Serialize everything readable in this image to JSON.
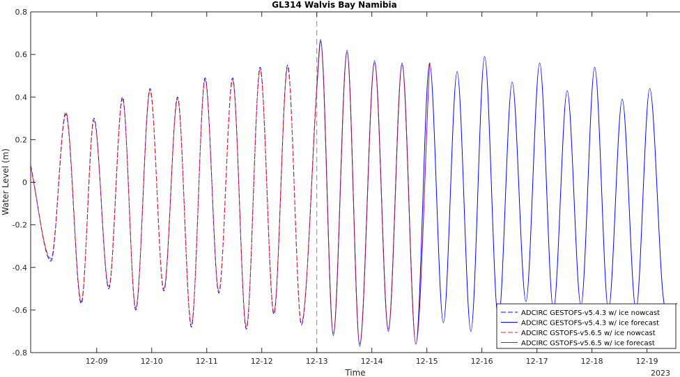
{
  "chart_data": {
    "type": "line",
    "title": "GL314 Walvis Bay Namibia",
    "xlabel": "Time",
    "ylabel": "Water Level (m)",
    "year_label": "2023",
    "x_unit": "days since 2023-12-08 00:00",
    "xlim": [
      -0.2,
      11.6
    ],
    "ylim": [
      -0.8,
      0.8
    ],
    "y_ticks": [
      -0.8,
      -0.6,
      -0.4,
      -0.2,
      0,
      0.2,
      0.4,
      0.6,
      0.8
    ],
    "x_ticks": [
      {
        "x": 1,
        "label": "12-09"
      },
      {
        "x": 2,
        "label": "12-10"
      },
      {
        "x": 3,
        "label": "12-11"
      },
      {
        "x": 4,
        "label": "12-12"
      },
      {
        "x": 5,
        "label": "12-13"
      },
      {
        "x": 6,
        "label": "12-14"
      },
      {
        "x": 7,
        "label": "12-15"
      },
      {
        "x": 8,
        "label": "12-16"
      },
      {
        "x": 9,
        "label": "12-17"
      },
      {
        "x": 10,
        "label": "12-18"
      },
      {
        "x": 11,
        "label": "12-19"
      }
    ],
    "forecast_start_x": 5,
    "legend_position": "bottom-right",
    "grid": false,
    "series": [
      {
        "name": "ADCIRC GESTOFS-v5.4.3 w/ ice nowcast",
        "color": "#0000ff",
        "dash": "dashed",
        "x": [
          -0.2,
          0.17,
          0.44,
          0.72,
          0.95,
          1.22,
          1.47,
          1.71,
          1.97,
          2.22,
          2.47,
          2.72,
          2.97,
          3.22,
          3.47,
          3.72,
          3.97,
          4.22,
          4.47,
          4.72,
          5.0
        ],
        "y": [
          0.08,
          -0.37,
          0.32,
          -0.57,
          0.3,
          -0.5,
          0.4,
          -0.6,
          0.44,
          -0.51,
          0.4,
          -0.68,
          0.49,
          -0.52,
          0.49,
          -0.69,
          0.54,
          -0.62,
          0.55,
          -0.67,
          0.45
        ]
      },
      {
        "name": "ADCIRC GESTOFS-v5.4.3 w/ ice forecast",
        "color": "#0000ff",
        "dash": "solid",
        "x": [
          5.0,
          5.07,
          5.3,
          5.55,
          5.78,
          6.05,
          6.3,
          6.55,
          6.8,
          7.05,
          7.3,
          7.55,
          7.8,
          8.05,
          8.3,
          8.55,
          8.8,
          9.05,
          9.3,
          9.55,
          9.8,
          10.05,
          10.3,
          10.55,
          10.8,
          11.05,
          11.3,
          11.55
        ],
        "y": [
          0.45,
          0.67,
          -0.72,
          0.62,
          -0.77,
          0.57,
          -0.7,
          0.56,
          -0.76,
          0.56,
          -0.66,
          0.52,
          -0.7,
          0.59,
          -0.65,
          0.47,
          -0.56,
          0.56,
          -0.6,
          0.43,
          -0.58,
          0.54,
          -0.6,
          0.39,
          -0.6,
          0.44,
          -0.55,
          -0.57
        ]
      },
      {
        "name": "ADCIRC GSTOFS-v5.6.5 w/ ice nowcast",
        "color": "#ee2222",
        "dash": "dashed",
        "x": [
          -0.2,
          0.17,
          0.44,
          0.72,
          0.95,
          1.22,
          1.47,
          1.71,
          1.97,
          2.22,
          2.47,
          2.72,
          2.97,
          3.22,
          3.47,
          3.72,
          3.97,
          4.22,
          4.47,
          4.72,
          5.0
        ],
        "y": [
          0.07,
          -0.36,
          0.33,
          -0.56,
          0.29,
          -0.49,
          0.39,
          -0.59,
          0.43,
          -0.5,
          0.39,
          -0.67,
          0.48,
          -0.51,
          0.48,
          -0.68,
          0.53,
          -0.61,
          0.54,
          -0.66,
          0.44
        ]
      },
      {
        "name": "ADCIRC GSTOFS-v5.6.5 w/ ice forecast",
        "color": "#a0124a",
        "dash": "solid",
        "x": [
          5.0,
          5.07,
          5.3,
          5.55,
          5.78,
          6.05,
          6.3,
          6.55,
          6.8,
          7.05
        ],
        "y": [
          0.44,
          0.66,
          -0.71,
          0.61,
          -0.76,
          0.56,
          -0.69,
          0.55,
          -0.76,
          0.56
        ]
      }
    ]
  }
}
